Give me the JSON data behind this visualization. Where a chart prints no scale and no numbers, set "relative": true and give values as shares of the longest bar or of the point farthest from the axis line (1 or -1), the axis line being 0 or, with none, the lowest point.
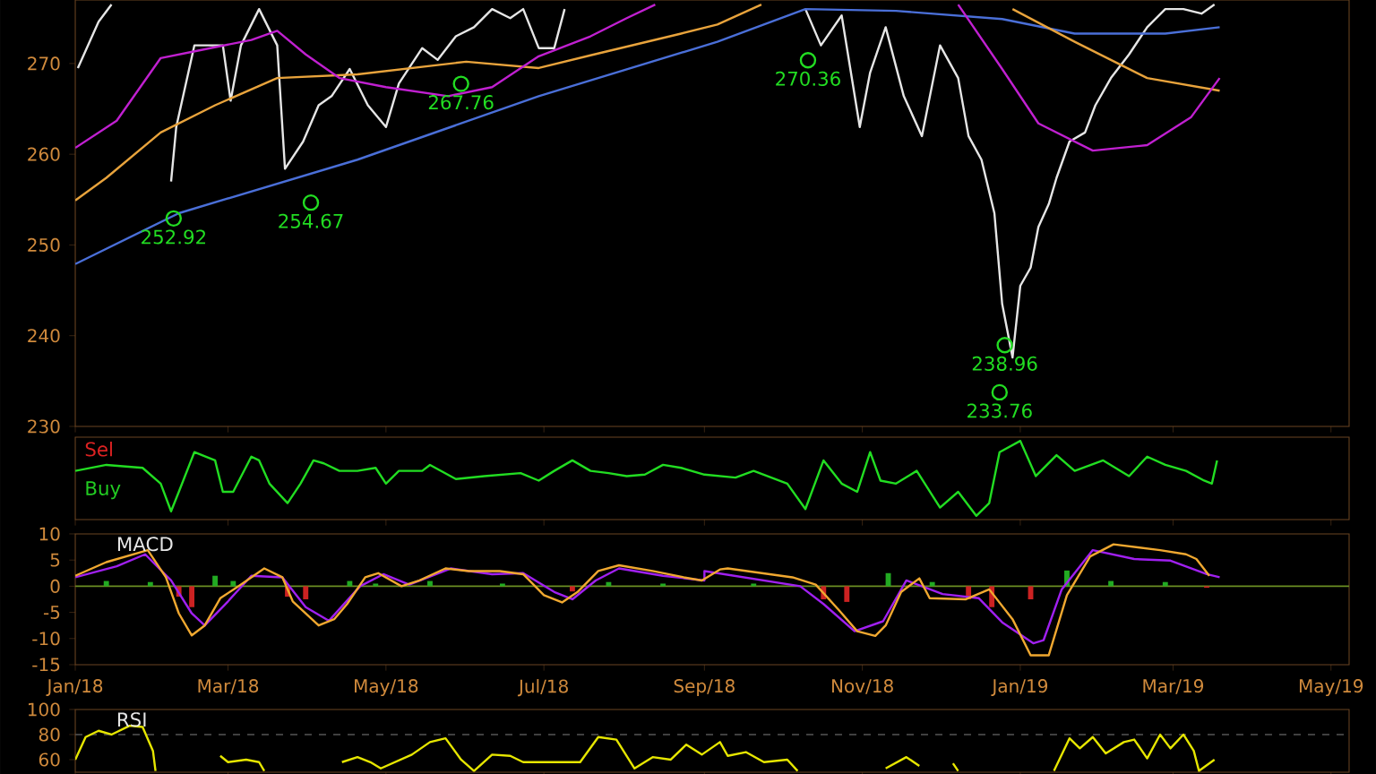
{
  "chart_data": [
    {
      "type": "line",
      "xlim": [
        "2018-01-01",
        "2019-05-08"
      ],
      "ylim": [
        230,
        277
      ],
      "yticks": [
        230,
        240,
        250,
        260,
        270
      ],
      "tick_labels": "y",
      "xticks": [
        {
          "value": "2018-01-01",
          "label": null
        },
        {
          "value": "2018-03-01",
          "label": null
        },
        {
          "value": "2018-05-01",
          "label": null
        },
        {
          "value": "2018-07-01",
          "label": null
        },
        {
          "value": "2018-09-01",
          "label": null
        },
        {
          "value": "2018-11-01",
          "label": null
        },
        {
          "value": "2019-01-01",
          "label": null
        },
        {
          "value": "2019-03-01",
          "label": null
        },
        {
          "value": "2019-05-01",
          "label": null
        }
      ],
      "series": [
        {
          "color": "#e6e6e6",
          "x": [
            "2018-01-02",
            "2018-01-10",
            "2018-01-15",
            "2018-01-22",
            "2018-02-07",
            "2018-02-09",
            "2018-02-16",
            "2018-02-27",
            "2018-03-02",
            "2018-03-06",
            "2018-03-13",
            "2018-03-20",
            "2018-03-23",
            "2018-03-30",
            "2018-04-05",
            "2018-04-10",
            "2018-04-17",
            "2018-04-24",
            "2018-05-01",
            "2018-05-06",
            "2018-05-15",
            "2018-05-21",
            "2018-05-28",
            "2018-06-04",
            "2018-06-11",
            "2018-06-18",
            "2018-06-23",
            "2018-06-29",
            "2018-07-05",
            "2018-07-09",
            "2018-07-20",
            "2018-10-10",
            "2018-10-16",
            "2018-10-24",
            "2018-10-31",
            "2018-11-04",
            "2018-11-10",
            "2018-11-17",
            "2018-11-24",
            "2018-12-01",
            "2018-12-08",
            "2018-12-12",
            "2018-12-17",
            "2018-12-22",
            "2018-12-25",
            "2018-12-29",
            "2019-01-01",
            "2019-01-05",
            "2019-01-08",
            "2019-01-12",
            "2019-01-15",
            "2019-01-20",
            "2019-01-26",
            "2019-01-30",
            "2019-02-05",
            "2019-02-12",
            "2019-02-19",
            "2019-02-26",
            "2019-03-05",
            "2019-03-12",
            "2019-03-17"
          ],
          "values": [
            269.5,
            274.6,
            276.5,
            null,
            257,
            263,
            272,
            272,
            265.9,
            272,
            276,
            272,
            258.4,
            261.4,
            265.4,
            266.4,
            269.4,
            265.4,
            263,
            267.8,
            271.7,
            270.4,
            273,
            274,
            276,
            275,
            276,
            271.7,
            271.7,
            276,
            null,
            276,
            272,
            275.3,
            263,
            269,
            274,
            266.4,
            262,
            272,
            268.4,
            262,
            259.4,
            253.5,
            243.5,
            237.6,
            245.5,
            247.5,
            252,
            254.5,
            257.4,
            261.4,
            262.4,
            265.4,
            268.4,
            271,
            274,
            276,
            276,
            275.5,
            276.5
          ]
        },
        {
          "color": "#4a6fd8",
          "x": [
            "2018-01-01",
            "2018-02-10",
            "2018-04-20",
            "2018-06-29",
            "2018-09-06",
            "2018-10-10",
            "2018-11-14",
            "2018-12-25",
            "2019-01-22",
            "2019-02-26",
            "2019-03-19"
          ],
          "values": [
            247.9,
            253.5,
            259.4,
            266.4,
            272.4,
            276,
            275.8,
            274.9,
            273.3,
            273.3,
            274
          ]
        },
        {
          "color": "#e8a33c",
          "x": [
            "2018-01-01",
            "2018-01-13",
            "2018-02-03",
            "2018-02-24",
            "2018-03-20",
            "2018-04-20",
            "2018-06-01",
            "2018-06-29",
            "2018-07-19",
            "2018-08-23",
            "2018-09-06",
            "2018-09-23",
            "2018-10-15",
            "2018-12-29",
            "2019-01-22",
            "2019-02-19",
            "2019-03-19"
          ],
          "values": [
            254.9,
            257.4,
            262.4,
            265.4,
            268.4,
            268.8,
            270.2,
            269.5,
            270.9,
            273.3,
            274.3,
            276.5,
            null,
            276,
            272.4,
            268.4,
            267
          ]
        },
        {
          "color": "#c020d0",
          "x": [
            "2018-01-01",
            "2018-01-17",
            "2018-02-03",
            "2018-02-17",
            "2018-03-10",
            "2018-03-20",
            "2018-03-31",
            "2018-04-13",
            "2018-05-01",
            "2018-05-25",
            "2018-06-11",
            "2018-06-29",
            "2018-07-19",
            "2018-08-02",
            "2018-08-13",
            "2018-09-15",
            "2018-12-08",
            "2018-12-25",
            "2019-01-08",
            "2019-01-29",
            "2019-02-19",
            "2019-03-08",
            "2019-03-19"
          ],
          "values": [
            260.7,
            263.7,
            270.6,
            271.4,
            272.6,
            273.6,
            271,
            268.4,
            267.4,
            266.4,
            267.4,
            270.8,
            273,
            275,
            276.5,
            null,
            276.5,
            269.4,
            263.4,
            260.4,
            261,
            264.1,
            268.4
          ]
        },
        {
          "type": "scatter",
          "marker": "circle",
          "color": "#22dd22",
          "x": [
            "2018-02-08",
            "2018-04-02",
            "2018-05-30",
            "2018-10-11",
            "2018-12-26",
            "2018-12-24"
          ],
          "values": [
            252.92,
            254.67,
            267.76,
            270.36,
            238.96,
            233.76
          ]
        }
      ],
      "annotations": [
        {
          "text": "252.92",
          "x": "2018-02-08",
          "y": 252.92
        },
        {
          "text": "254.67",
          "x": "2018-04-02",
          "y": 254.67
        },
        {
          "text": "267.76",
          "x": "2018-05-30",
          "y": 267.76
        },
        {
          "text": "270.36",
          "x": "2018-10-11",
          "y": 270.36
        },
        {
          "text": "238.96",
          "x": "2018-12-26",
          "y": 238.96
        },
        {
          "text": "233.76",
          "x": "2018-12-24",
          "y": 233.76
        }
      ]
    },
    {
      "type": "line",
      "relative": true,
      "xlim": [
        "2018-01-01",
        "2019-05-08"
      ],
      "tick_labels": false,
      "xticks": [
        {
          "value": "2018-01-01",
          "label": null
        },
        {
          "value": "2018-03-01",
          "label": null
        },
        {
          "value": "2018-05-01",
          "label": null
        },
        {
          "value": "2018-07-01",
          "label": null
        },
        {
          "value": "2018-09-01",
          "label": null
        },
        {
          "value": "2018-11-01",
          "label": null
        },
        {
          "value": "2019-01-01",
          "label": null
        },
        {
          "value": "2019-03-01",
          "label": null
        },
        {
          "value": "2019-05-01",
          "label": null
        }
      ],
      "series": [
        {
          "color": "#22dd22",
          "x": [
            "2018-01-01",
            "2018-01-13",
            "2018-01-27",
            "2018-02-03",
            "2018-02-07",
            "2018-02-10",
            "2018-02-16",
            "2018-02-24",
            "2018-02-27",
            "2018-03-03",
            "2018-03-10",
            "2018-03-13",
            "2018-03-17",
            "2018-03-24",
            "2018-03-29",
            "2018-04-03",
            "2018-04-07",
            "2018-04-13",
            "2018-04-20",
            "2018-04-27",
            "2018-05-01",
            "2018-05-06",
            "2018-05-15",
            "2018-05-18",
            "2018-05-28",
            "2018-06-08",
            "2018-06-22",
            "2018-06-29",
            "2018-07-05",
            "2018-07-12",
            "2018-07-19",
            "2018-07-26",
            "2018-08-02",
            "2018-08-09",
            "2018-08-16",
            "2018-08-23",
            "2018-09-01",
            "2018-09-13",
            "2018-09-20",
            "2018-10-03",
            "2018-10-10",
            "2018-10-17",
            "2018-10-24",
            "2018-10-30",
            "2018-11-04",
            "2018-11-08",
            "2018-11-14",
            "2018-11-22",
            "2018-12-01",
            "2018-12-08",
            "2018-12-15",
            "2018-12-20",
            "2018-12-24",
            "2019-01-01",
            "2019-01-07",
            "2019-01-15",
            "2019-01-22",
            "2019-02-02",
            "2019-02-12",
            "2019-02-19",
            "2019-02-26",
            "2019-03-06",
            "2019-03-13",
            "2019-03-16",
            "2019-03-18"
          ],
          "values": [
            0.6,
            0.68,
            0.64,
            0.43,
            0.06,
            0.32,
            0.85,
            0.74,
            0.32,
            0.32,
            0.79,
            0.74,
            0.43,
            0.17,
            0.43,
            0.74,
            0.7,
            0.6,
            0.6,
            0.64,
            0.43,
            0.6,
            0.6,
            0.68,
            0.49,
            0.53,
            0.57,
            0.47,
            0.6,
            0.74,
            0.6,
            0.57,
            0.53,
            0.55,
            0.68,
            0.64,
            0.55,
            0.51,
            0.6,
            0.43,
            0.09,
            0.74,
            0.43,
            0.32,
            0.85,
            0.47,
            0.43,
            0.6,
            0.11,
            0.32,
            0,
            0.17,
            0.85,
            1,
            0.53,
            0.81,
            0.6,
            0.74,
            0.53,
            0.79,
            0.68,
            0.6,
            0.47,
            0.43,
            0.74
          ]
        }
      ],
      "annotations": [
        "Sel",
        "Buy"
      ]
    },
    {
      "type": "line",
      "xlim": [
        "2018-01-01",
        "2019-05-08"
      ],
      "ylim": [
        -15,
        10
      ],
      "yticks": [
        -15,
        -10,
        -5,
        0,
        5,
        10
      ],
      "xticks": [
        {
          "value": "2018-01-01",
          "label": "Jan/18"
        },
        {
          "value": "2018-03-01",
          "label": "Mar/18"
        },
        {
          "value": "2018-05-01",
          "label": "May/18"
        },
        {
          "value": "2018-07-01",
          "label": "Jul/18"
        },
        {
          "value": "2018-09-01",
          "label": "Sep/18"
        },
        {
          "value": "2018-11-01",
          "label": "Nov/18"
        },
        {
          "value": "2019-01-01",
          "label": "Jan/19"
        },
        {
          "value": "2019-03-01",
          "label": "Mar/19"
        },
        {
          "value": "2019-05-01",
          "label": "May/19"
        }
      ],
      "ref_lines": [
        {
          "axis": "y",
          "value": 0,
          "color": "#6b8e23"
        }
      ],
      "series": [
        {
          "type": "bar",
          "x": [
            "2018-01-13",
            "2018-01-30",
            "2018-02-10",
            "2018-02-15",
            "2018-02-24",
            "2018-03-03",
            "2018-03-24",
            "2018-03-31",
            "2018-04-17",
            "2018-04-27",
            "2018-05-18",
            "2018-06-15",
            "2018-07-12",
            "2018-07-26",
            "2018-08-16",
            "2018-09-20",
            "2018-10-17",
            "2018-10-26",
            "2018-11-11",
            "2018-11-28",
            "2018-12-12",
            "2018-12-21",
            "2019-01-05",
            "2019-01-19",
            "2019-02-05",
            "2019-02-26",
            "2019-03-14"
          ],
          "values": [
            1.0,
            0.8,
            -2.0,
            -4.0,
            2.0,
            1.0,
            -2.0,
            -2.5,
            1.0,
            0.5,
            1.0,
            0.5,
            -1.0,
            0.8,
            0.5,
            0.5,
            -2.5,
            -3.0,
            2.5,
            0.8,
            -2.5,
            -4.0,
            -2.5,
            3.0,
            1.0,
            0.8,
            -0.3
          ],
          "colors": [
            "#22aa22",
            "#22aa22",
            "#cc2222",
            "#cc2222",
            "#22aa22",
            "#22aa22",
            "#cc2222",
            "#cc2222",
            "#22aa22",
            "#22aa22",
            "#22aa22",
            "#22aa22",
            "#cc2222",
            "#22aa22",
            "#22aa22",
            "#22aa22",
            "#cc2222",
            "#cc2222",
            "#22aa22",
            "#22aa22",
            "#cc2222",
            "#cc2222",
            "#cc2222",
            "#22aa22",
            "#22aa22",
            "#22aa22",
            "#cc2222"
          ]
        },
        {
          "color": "#a020f0",
          "x": [
            "2018-01-01",
            "2018-01-17",
            "2018-01-28",
            "2018-02-07",
            "2018-02-15",
            "2018-02-20",
            "2018-03-01",
            "2018-03-10",
            "2018-03-22",
            "2018-03-31",
            "2018-04-09",
            "2018-04-21",
            "2018-04-30",
            "2018-05-10",
            "2018-05-26",
            "2018-06-11",
            "2018-06-23",
            "2018-07-05",
            "2018-07-12",
            "2018-07-21",
            "2018-07-30",
            "2018-08-16",
            "2018-09-01",
            "2018-09-01",
            "2018-10-08",
            "2018-10-17",
            "2018-10-29",
            "2018-11-09",
            "2018-11-18",
            "2018-12-02",
            "2018-12-16",
            "2018-12-25",
            "2019-01-06",
            "2019-01-10",
            "2019-01-17",
            "2019-01-29",
            "2019-02-14",
            "2019-02-28",
            "2019-03-14",
            "2019-03-19"
          ],
          "values": [
            1.7,
            3.8,
            6.1,
            1.1,
            -5.2,
            -7.5,
            -2.9,
            2.0,
            1.7,
            -4.0,
            -6.6,
            0,
            2.3,
            0.3,
            3.4,
            2.3,
            2.5,
            -1.1,
            -2.5,
            1.1,
            3.4,
            2.0,
            1.1,
            2.9,
            0,
            -3.4,
            -8.6,
            -6.7,
            1.1,
            -1.5,
            -2.3,
            -6.9,
            -10.9,
            -10.3,
            -0.6,
            6.9,
            5.2,
            4.9,
            2.3,
            1.7
          ]
        },
        {
          "color": "#f0a830",
          "x": [
            "2018-01-01",
            "2018-01-13",
            "2018-01-29",
            "2018-02-05",
            "2018-02-10",
            "2018-02-15",
            "2018-02-20",
            "2018-02-26",
            "2018-03-05",
            "2018-03-15",
            "2018-03-22",
            "2018-03-26",
            "2018-04-05",
            "2018-04-11",
            "2018-04-16",
            "2018-04-23",
            "2018-04-28",
            "2018-05-07",
            "2018-05-14",
            "2018-05-24",
            "2018-06-02",
            "2018-06-14",
            "2018-06-23",
            "2018-07-01",
            "2018-07-08",
            "2018-07-14",
            "2018-07-22",
            "2018-07-30",
            "2018-08-12",
            "2018-08-24",
            "2018-08-31",
            "2018-09-07",
            "2018-09-10",
            "2018-10-05",
            "2018-10-14",
            "2018-10-23",
            "2018-10-30",
            "2018-11-06",
            "2018-11-10",
            "2018-11-16",
            "2018-11-23",
            "2018-11-27",
            "2018-12-11",
            "2018-12-20",
            "2018-12-29",
            "2019-01-05",
            "2019-01-12",
            "2019-01-19",
            "2019-01-28",
            "2019-02-06",
            "2019-02-24",
            "2019-03-06",
            "2019-03-10",
            "2019-03-15"
          ],
          "values": [
            2.0,
            4.6,
            6.9,
            1.7,
            -5.2,
            -9.4,
            -7.5,
            -2.3,
            0,
            3.4,
            1.7,
            -2.9,
            -7.5,
            -6.3,
            -3.4,
            1.7,
            2.5,
            0,
            1.1,
            3.4,
            2.9,
            2.9,
            2.3,
            -1.7,
            -3.1,
            -1.1,
            2.9,
            4.0,
            2.9,
            1.7,
            1.1,
            3.2,
            3.4,
            1.7,
            0.3,
            -4.6,
            -8.6,
            -9.5,
            -7.5,
            -1.1,
            1.5,
            -2.3,
            -2.5,
            -0.6,
            -6.3,
            -13.2,
            -13.2,
            -1.7,
            5.7,
            8.0,
            6.9,
            6.1,
            5.2,
            2.0
          ]
        }
      ],
      "annotations": [
        "MACD"
      ]
    },
    {
      "type": "line",
      "xlim": [
        "2018-01-01",
        "2019-05-08"
      ],
      "ylim": [
        50,
        100
      ],
      "yticks": [
        60,
        80,
        100
      ],
      "tick_labels": "y",
      "xticks": [
        {
          "value": "2018-01-01",
          "label": null
        },
        {
          "value": "2018-03-01",
          "label": null
        },
        {
          "value": "2018-05-01",
          "label": null
        },
        {
          "value": "2018-07-01",
          "label": null
        },
        {
          "value": "2018-09-01",
          "label": null
        },
        {
          "value": "2018-11-01",
          "label": null
        },
        {
          "value": "2019-01-01",
          "label": null
        },
        {
          "value": "2019-03-01",
          "label": null
        },
        {
          "value": "2019-05-01",
          "label": null
        }
      ],
      "ref_lines": [
        {
          "axis": "y",
          "value": 80,
          "color": "#555555",
          "line_style": "dashed"
        }
      ],
      "series": [
        {
          "color": "#e6e600",
          "x": [
            "2018-01-01",
            "2018-01-05",
            "2018-01-10",
            "2018-01-15",
            "2018-01-22",
            "2018-01-27",
            "2018-01-31",
            "2018-02-01",
            "2018-02-10",
            "2018-02-26",
            "2018-03-01",
            "2018-03-08",
            "2018-03-13",
            "2018-03-15",
            "2018-03-30",
            "2018-04-14",
            "2018-04-20",
            "2018-04-25",
            "2018-04-29",
            "2018-05-11",
            "2018-05-18",
            "2018-05-24",
            "2018-05-30",
            "2018-06-04",
            "2018-06-11",
            "2018-06-18",
            "2018-06-23",
            "2018-07-15",
            "2018-07-22",
            "2018-07-29",
            "2018-08-05",
            "2018-08-12",
            "2018-08-19",
            "2018-08-25",
            "2018-08-31",
            "2018-09-07",
            "2018-09-10",
            "2018-09-17",
            "2018-09-24",
            "2018-10-03",
            "2018-10-07",
            "2018-10-15",
            "2018-11-10",
            "2018-11-18",
            "2018-11-23",
            "2018-11-28",
            "2018-12-06",
            "2018-12-08",
            "2018-12-15",
            "2019-01-14",
            "2019-01-20",
            "2019-01-24",
            "2019-01-29",
            "2019-02-03",
            "2019-02-10",
            "2019-02-14",
            "2019-02-19",
            "2019-02-24",
            "2019-02-28",
            "2019-03-05",
            "2019-03-09",
            "2019-03-11",
            "2019-03-17"
          ],
          "values": [
            60,
            78,
            83,
            80,
            87,
            86,
            67,
            51,
            null,
            63,
            58,
            60,
            58,
            51,
            null,
            58,
            62,
            58,
            53,
            64,
            74,
            77,
            60,
            51,
            64,
            63,
            58,
            58,
            78,
            76,
            53,
            62,
            60,
            72,
            64,
            74,
            63,
            66,
            58,
            60,
            51,
            null,
            53,
            62,
            55,
            null,
            57,
            51,
            null,
            51,
            77,
            69,
            78,
            65,
            74,
            76,
            61,
            80,
            69,
            80,
            67,
            51,
            60
          ]
        }
      ],
      "annotations": [
        "RSI"
      ]
    }
  ]
}
